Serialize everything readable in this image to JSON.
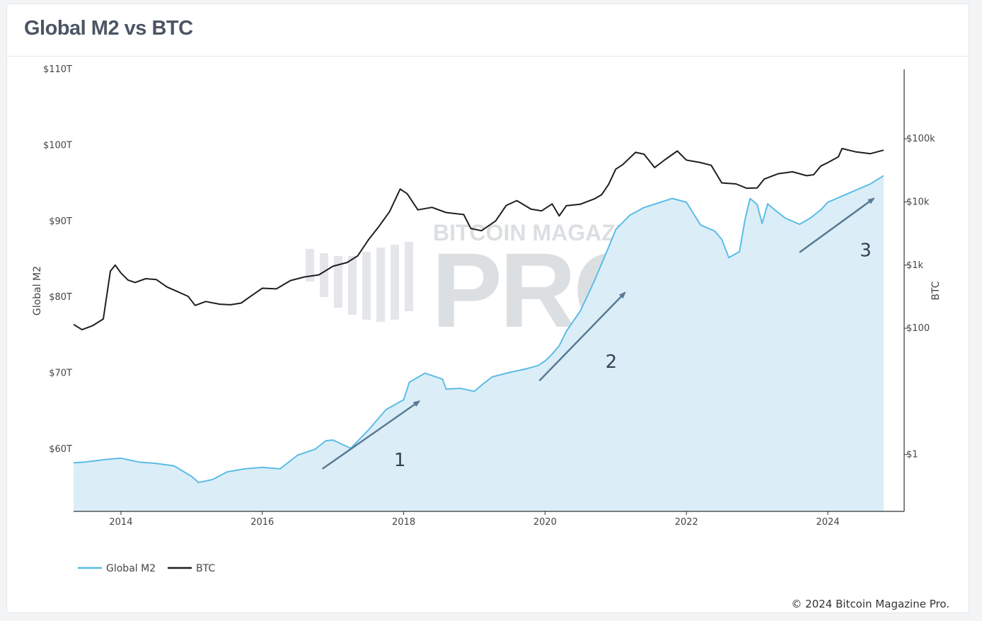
{
  "title": "Global M2 vs BTC",
  "copyright": "© 2024 Bitcoin Magazine Pro.",
  "watermark": {
    "line1": "BITCOIN MAGAZINE",
    "line2": "PRO"
  },
  "colors": {
    "m2_line": "#5cbce6",
    "m2_fill": "#dbeef8",
    "btc": "#1f1f1f",
    "arrow": "#5a7a92"
  },
  "chart_data": {
    "type": "area",
    "title": "Global M2 vs BTC",
    "xlabel": "",
    "ylabel": "Global M2",
    "y2label": "BTC",
    "xlim": [
      2013.33,
      2024.79
    ],
    "ylim": [
      51.8,
      110
    ],
    "y2lim_log10": [
      -0.9,
      6.1
    ],
    "y2scale": "log",
    "x_ticks": [
      "2014",
      "2016",
      "2018",
      "2020",
      "2022",
      "2024"
    ],
    "x_tick_values": [
      2014,
      2016,
      2018,
      2020,
      2022,
      2024
    ],
    "y_ticks": [
      "$60T",
      "$70T",
      "$80T",
      "$90T",
      "$100T",
      "$110T"
    ],
    "y_tick_values": [
      60,
      70,
      80,
      90,
      100,
      110
    ],
    "y2_ticks": [
      "$1",
      "$100",
      "$1k",
      "$10k",
      "$100k"
    ],
    "y2_tick_values": [
      1,
      100,
      1000,
      10000,
      100000
    ],
    "grid": false,
    "legend_position": "bottom-left",
    "series": [
      {
        "name": "Global M2",
        "axis": "left",
        "unit": "USD trillions",
        "x": [
          2013.33,
          2013.5,
          2013.75,
          2014.0,
          2014.25,
          2014.5,
          2014.75,
          2015.0,
          2015.1,
          2015.3,
          2015.5,
          2015.75,
          2016.0,
          2016.25,
          2016.5,
          2016.75,
          2016.9,
          2017.0,
          2017.25,
          2017.5,
          2017.75,
          2018.0,
          2018.08,
          2018.3,
          2018.55,
          2018.6,
          2018.8,
          2019.0,
          2019.1,
          2019.25,
          2019.5,
          2019.75,
          2019.9,
          2020.0,
          2020.1,
          2020.2,
          2020.3,
          2020.5,
          2020.7,
          2020.9,
          2021.0,
          2021.2,
          2021.4,
          2021.6,
          2021.8,
          2022.0,
          2022.1,
          2022.2,
          2022.4,
          2022.5,
          2022.6,
          2022.75,
          2022.83,
          2022.9,
          2023.0,
          2023.07,
          2023.15,
          2023.25,
          2023.4,
          2023.6,
          2023.75,
          2023.9,
          2024.0,
          2024.2,
          2024.4,
          2024.6,
          2024.79
        ],
        "values": [
          58.2,
          58.3,
          58.6,
          58.8,
          58.3,
          58.1,
          57.8,
          56.4,
          55.6,
          56.0,
          57.0,
          57.4,
          57.6,
          57.4,
          59.2,
          60.0,
          61.1,
          61.2,
          60.1,
          62.5,
          65.2,
          66.5,
          68.8,
          70.0,
          69.2,
          67.9,
          68.0,
          67.6,
          68.4,
          69.5,
          70.1,
          70.6,
          71.0,
          71.6,
          72.5,
          73.6,
          75.5,
          78.2,
          82.2,
          86.6,
          88.9,
          90.8,
          91.8,
          92.4,
          93.0,
          92.5,
          91.0,
          89.5,
          88.7,
          87.6,
          85.2,
          86.0,
          90.3,
          93.0,
          92.2,
          89.7,
          92.3,
          91.5,
          90.4,
          89.6,
          90.4,
          91.5,
          92.5,
          93.3,
          94.1,
          94.9,
          96.0
        ]
      },
      {
        "name": "BTC",
        "axis": "right",
        "scale": "log",
        "unit": "USD",
        "x": [
          2013.33,
          2013.45,
          2013.6,
          2013.75,
          2013.85,
          2013.92,
          2014.0,
          2014.1,
          2014.2,
          2014.35,
          2014.5,
          2014.65,
          2014.8,
          2014.95,
          2015.05,
          2015.2,
          2015.4,
          2015.55,
          2015.7,
          2015.85,
          2016.0,
          2016.2,
          2016.4,
          2016.6,
          2016.8,
          2017.0,
          2017.2,
          2017.35,
          2017.5,
          2017.65,
          2017.8,
          2017.95,
          2018.05,
          2018.2,
          2018.4,
          2018.6,
          2018.85,
          2018.95,
          2019.1,
          2019.3,
          2019.45,
          2019.6,
          2019.8,
          2019.95,
          2020.1,
          2020.2,
          2020.3,
          2020.5,
          2020.7,
          2020.8,
          2020.9,
          2021.0,
          2021.1,
          2021.28,
          2021.4,
          2021.55,
          2021.7,
          2021.87,
          2022.0,
          2022.2,
          2022.35,
          2022.5,
          2022.7,
          2022.85,
          2023.0,
          2023.1,
          2023.3,
          2023.5,
          2023.7,
          2023.8,
          2023.9,
          2024.0,
          2024.15,
          2024.2,
          2024.4,
          2024.6,
          2024.79
        ],
        "values": [
          115,
          95,
          110,
          140,
          800,
          1000,
          750,
          580,
          530,
          610,
          590,
          450,
          380,
          320,
          230,
          265,
          240,
          235,
          250,
          330,
          430,
          420,
          570,
          650,
          700,
          960,
          1100,
          1400,
          2500,
          4100,
          7000,
          16000,
          13500,
          7500,
          8200,
          6800,
          6300,
          3800,
          3500,
          5000,
          8800,
          10500,
          7700,
          7200,
          9300,
          6000,
          8700,
          9200,
          11200,
          13000,
          19000,
          33000,
          39000,
          61000,
          57000,
          35000,
          47000,
          64000,
          46000,
          42000,
          38000,
          20000,
          19300,
          16500,
          16600,
          23000,
          28000,
          30000,
          26000,
          27000,
          37000,
          42000,
          52000,
          70000,
          62000,
          58000,
          66000
        ]
      }
    ],
    "annotations": [
      {
        "text": "1",
        "from": [
          2016.85,
          57.4
        ],
        "to": [
          2018.22,
          66.3
        ]
      },
      {
        "text": "2",
        "from": [
          2019.92,
          69.0
        ],
        "to": [
          2021.13,
          80.6
        ]
      },
      {
        "text": "3",
        "from": [
          2023.6,
          85.9
        ],
        "to": [
          2024.65,
          93.0
        ]
      }
    ]
  }
}
